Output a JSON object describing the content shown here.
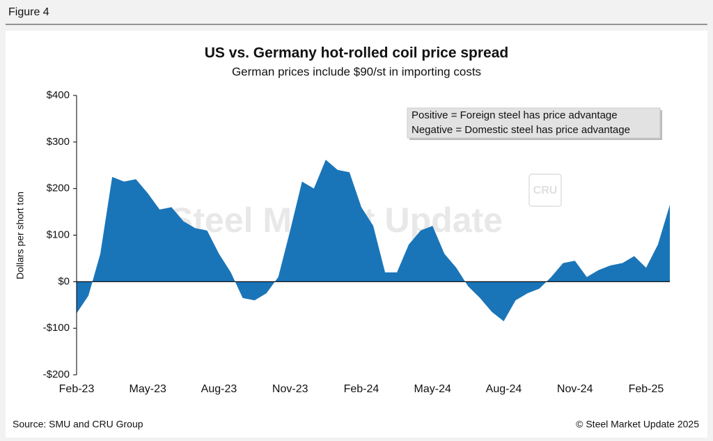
{
  "header": "Figure 4",
  "chart_data": {
    "type": "area",
    "title": "US vs. Germany hot-rolled coil price spread",
    "subtitle": "German prices include $90/st in importing costs",
    "y_label": "Dollars per short ton",
    "annotations": [
      "Positive = Foreign steel has price advantage",
      "Negative = Domestic steel has price advantage"
    ],
    "watermark": "Steel Market Update",
    "watermark_logo": "CRU",
    "categories": [
      "Feb-23",
      null,
      null,
      null,
      null,
      null,
      "May-23",
      null,
      null,
      null,
      null,
      null,
      "Aug-23",
      null,
      null,
      null,
      null,
      null,
      "Nov-23",
      null,
      null,
      null,
      null,
      null,
      "Feb-24",
      null,
      null,
      null,
      null,
      null,
      "May-24",
      null,
      null,
      null,
      null,
      null,
      "Aug-24",
      null,
      null,
      null,
      null,
      null,
      "Nov-24",
      null,
      null,
      null,
      null,
      null,
      "Feb-25",
      null,
      null
    ],
    "series": [
      {
        "name": "Price spread",
        "color": "#1a75b8",
        "values": [
          -68,
          -30,
          60,
          225,
          215,
          220,
          190,
          155,
          160,
          130,
          115,
          110,
          60,
          20,
          -35,
          -40,
          -25,
          10,
          110,
          215,
          200,
          262,
          240,
          235,
          160,
          120,
          20,
          20,
          80,
          110,
          120,
          60,
          30,
          -10,
          -35,
          -65,
          -85,
          -40,
          -25,
          -15,
          10,
          40,
          45,
          10,
          25,
          35,
          40,
          55,
          30,
          80,
          165
        ]
      }
    ],
    "ylim": [
      -200,
      400
    ],
    "yticks": [
      {
        "value": -200,
        "label": "-$200"
      },
      {
        "value": -100,
        "label": "-$100"
      },
      {
        "value": 0,
        "label": "$0"
      },
      {
        "value": 100,
        "label": "$100"
      },
      {
        "value": 200,
        "label": "$200"
      },
      {
        "value": 300,
        "label": "$300"
      },
      {
        "value": 400,
        "label": "$400"
      }
    ],
    "source": "Source: SMU and CRU Group",
    "copyright": "© Steel Market Update 2025"
  }
}
